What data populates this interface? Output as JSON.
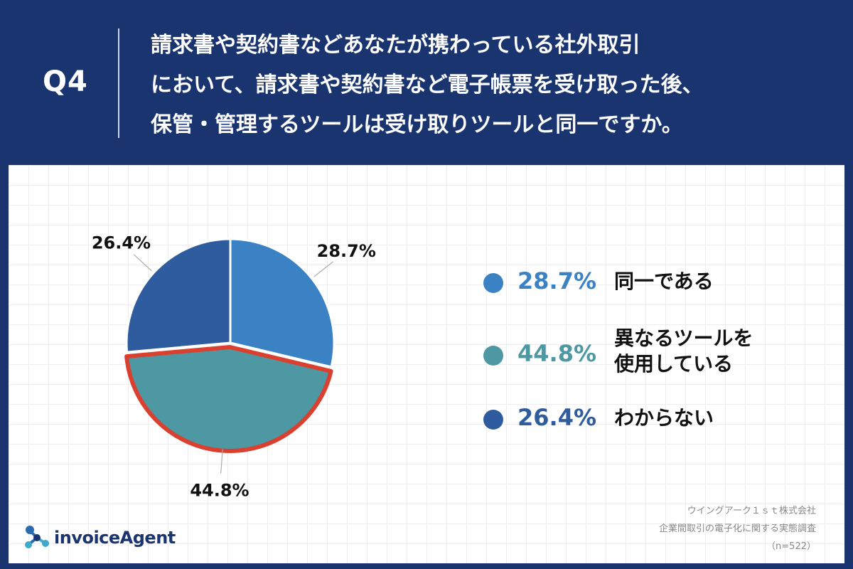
{
  "header": {
    "qnum": "Q4",
    "question_lines": [
      "請求書や契約書などあなたが携わっている社外取引",
      "において、請求書や契約書など電子帳票を受け取った後、",
      "保管・管理するツールは受け取りツールと同一ですか。"
    ]
  },
  "chart_data": {
    "type": "pie",
    "title": "",
    "slices": [
      {
        "label": "同一である",
        "value": 28.7,
        "display": "28.7%",
        "color": "#3b82c4"
      },
      {
        "label": "異なるツールを使用している",
        "value": 44.8,
        "display": "44.8%",
        "color": "#4e98a3",
        "highlight": true
      },
      {
        "label": "わからない",
        "value": 26.4,
        "display": "26.4%",
        "color": "#2e5c9e"
      }
    ],
    "highlight_color": "#d9402f"
  },
  "legend": [
    {
      "pct": "28.7%",
      "lines": [
        "同一である"
      ],
      "color": "#3b82c4"
    },
    {
      "pct": "44.8%",
      "lines": [
        "異なるツールを",
        "使用している"
      ],
      "color": "#4e98a3"
    },
    {
      "pct": "26.4%",
      "lines": [
        "わからない"
      ],
      "color": "#2e5c9e"
    }
  ],
  "source": {
    "company": "ウイングアーク１ｓｔ株式会社",
    "survey": "企業間取引の電子化に関する実態調査",
    "n": "（n=522）"
  },
  "logo": {
    "text": "invoiceAgent"
  }
}
